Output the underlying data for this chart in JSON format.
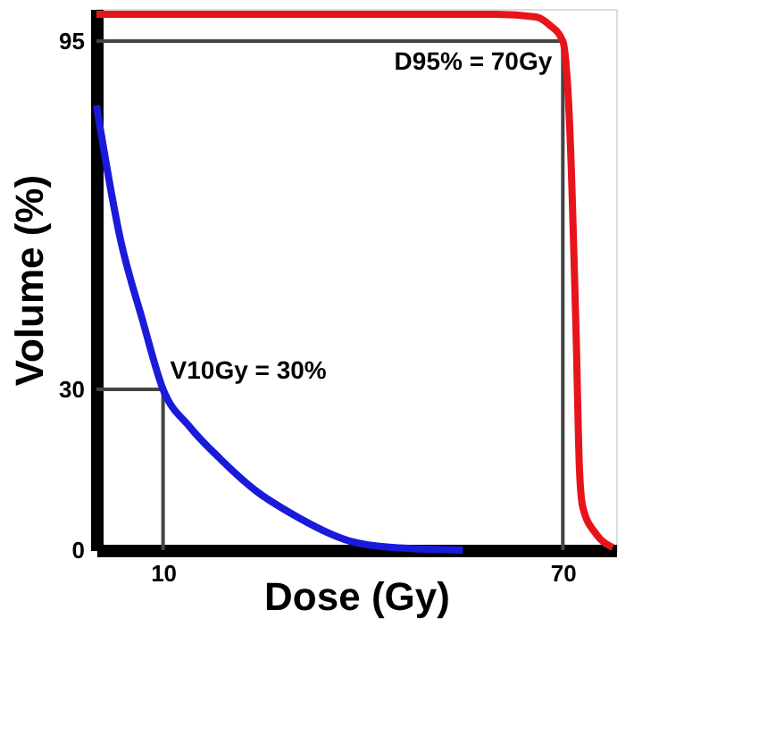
{
  "chart_data": {
    "type": "line",
    "xlabel": "Dose (Gy)",
    "ylabel": "Volume (%)",
    "xlim": [
      0,
      78
    ],
    "ylim": [
      0,
      101
    ],
    "xticks": [
      10,
      70
    ],
    "yticks": [
      0,
      30,
      95
    ],
    "grid": false,
    "marker": "none",
    "line_style": "solid",
    "series": [
      {
        "color": "#e8141b",
        "x": [
          0,
          60,
          66,
          68,
          70,
          71,
          72,
          72.5,
          73,
          75,
          77.5
        ],
        "values": [
          100,
          100,
          99.5,
          98,
          95,
          80,
          40,
          15,
          8,
          3,
          0.5
        ]
      },
      {
        "color": "#1a1adb",
        "x": [
          0,
          3.6,
          6.9,
          10,
          14,
          18.6,
          24,
          29,
          38,
          44.4,
          55
        ],
        "values": [
          83,
          58,
          43,
          30,
          23,
          17,
          11,
          7,
          1.7,
          0.5,
          0
        ]
      }
    ],
    "ref_lines": [
      {
        "axis": "y",
        "value": 95,
        "color": "#444444"
      },
      {
        "axis": "x",
        "value": 70,
        "color": "#444444"
      },
      {
        "axis": "y",
        "value": 30,
        "color": "#444444"
      },
      {
        "axis": "x",
        "value": 10,
        "color": "#444444"
      }
    ],
    "annotations": [
      {
        "text": "D95% = 70Gy",
        "x": 70,
        "y": 95
      },
      {
        "text": "V10Gy = 30%",
        "x": 10,
        "y": 30
      }
    ]
  }
}
